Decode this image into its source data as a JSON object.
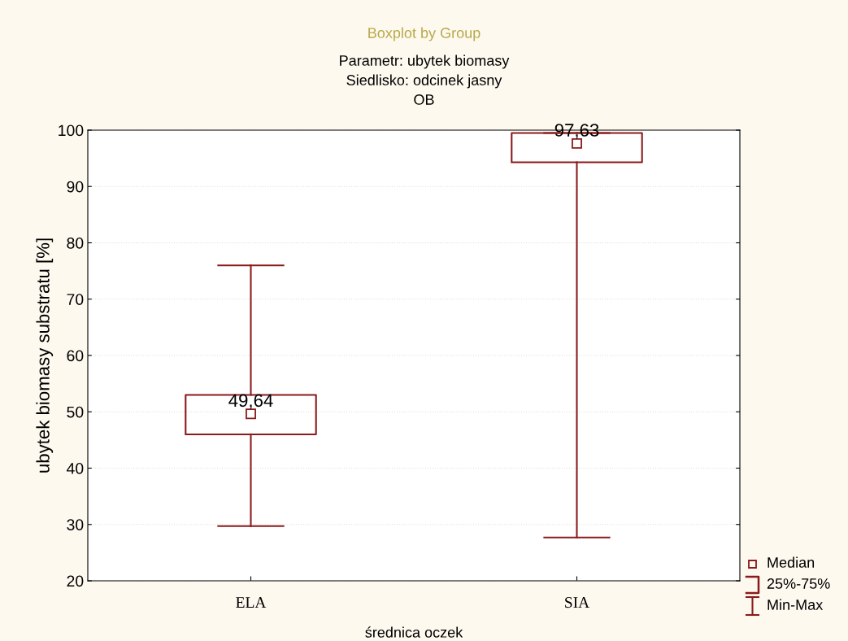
{
  "chart_data": {
    "type": "box",
    "title": "Boxplot by Group",
    "subtitle": "Parametr: ubytek biomasy\nSiedlisko: odcinek jasny\nOB",
    "xlabel": "średnica oczek",
    "ylabel": "ubytek biomasy substratu [%]",
    "categories": [
      "ELA",
      "SIA"
    ],
    "series": [
      {
        "color": "#8b1a1a",
        "boxes": [
          {
            "low": 29.7,
            "q1": 46.0,
            "median": 49.64,
            "q3": 53.0,
            "high": 76.0
          },
          {
            "low": 27.7,
            "q1": 94.3,
            "median": 97.63,
            "q3": 99.5,
            "high": 99.5
          }
        ],
        "value_labels": [
          "49,64",
          "97,63"
        ]
      }
    ],
    "ylim": [
      20,
      100
    ],
    "yticks": [
      20,
      30,
      40,
      50,
      60,
      70,
      80,
      90,
      100
    ],
    "grid": "y",
    "marker": "square",
    "annotations": [
      "Median",
      "25%-75%",
      "Min-Max"
    ]
  }
}
